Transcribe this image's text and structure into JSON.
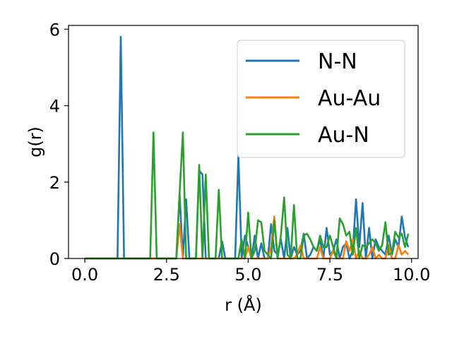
{
  "chart_data": {
    "type": "line",
    "title": "",
    "xlabel": "r (Å)",
    "ylabel": "g(r)",
    "xlim": [
      -0.5,
      10.2
    ],
    "ylim": [
      0,
      6.1
    ],
    "xticks": [
      0.0,
      2.5,
      5.0,
      7.5,
      10.0
    ],
    "xtick_labels": [
      "0.0",
      "2.5",
      "5.0",
      "7.5",
      "10.0"
    ],
    "yticks": [
      0,
      2,
      4,
      6
    ],
    "ytick_labels": [
      "0",
      "2",
      "4",
      "6"
    ],
    "grid": false,
    "legend_position": "top-right",
    "series": [
      {
        "name": "N-N",
        "color": "#1f77b4",
        "x": [
          0.0,
          0.1,
          0.2,
          0.3,
          0.4,
          0.5,
          0.6,
          0.7,
          0.8,
          0.9,
          1.0,
          1.1,
          1.2,
          1.3,
          1.4,
          1.5,
          1.6,
          1.7,
          1.8,
          1.9,
          2.0,
          2.1,
          2.2,
          2.3,
          2.4,
          2.5,
          2.6,
          2.7,
          2.8,
          2.9,
          3.0,
          3.1,
          3.2,
          3.3,
          3.4,
          3.5,
          3.6,
          3.7,
          3.8,
          3.9,
          4.0,
          4.1,
          4.2,
          4.3,
          4.4,
          4.5,
          4.6,
          4.7,
          4.8,
          4.9,
          5.0,
          5.1,
          5.2,
          5.3,
          5.4,
          5.5,
          5.6,
          5.7,
          5.8,
          5.9,
          6.0,
          6.1,
          6.2,
          6.3,
          6.4,
          6.5,
          6.6,
          6.7,
          6.8,
          6.9,
          7.0,
          7.1,
          7.2,
          7.3,
          7.4,
          7.5,
          7.6,
          7.7,
          7.8,
          7.9,
          8.0,
          8.1,
          8.2,
          8.3,
          8.4,
          8.5,
          8.6,
          8.7,
          8.8,
          8.9,
          9.0,
          9.1,
          9.2,
          9.3,
          9.4,
          9.5,
          9.6,
          9.7,
          9.8,
          9.9
        ],
        "y": [
          0,
          0,
          0,
          0,
          0,
          0,
          0,
          0,
          0,
          0,
          0,
          5.8,
          0,
          0,
          0,
          0,
          0,
          0,
          0,
          0,
          0,
          0,
          0,
          0,
          0,
          0,
          0,
          0,
          0,
          1.7,
          0,
          1.55,
          0,
          0,
          0,
          2.3,
          2.2,
          0,
          0,
          0,
          0,
          0,
          0.45,
          0,
          0,
          0,
          0,
          2.7,
          0,
          0.6,
          0.3,
          0,
          0.6,
          0,
          0.4,
          0,
          0,
          0.9,
          0.2,
          0.1,
          0.5,
          0,
          0.8,
          0,
          0.3,
          0.1,
          0.2,
          0.65,
          0,
          0.1,
          0.3,
          0.2,
          0.5,
          0,
          0.8,
          0.1,
          0.2,
          0.5,
          0,
          0.3,
          0.4,
          0,
          0.2,
          1.55,
          0.3,
          1.45,
          0,
          0.8,
          0,
          0.5,
          0.3,
          0.2,
          0.1,
          0.6,
          0.1,
          0.5,
          0.3,
          1.1,
          0.55,
          0.3
        ]
      },
      {
        "name": "Au-Au",
        "color": "#ff7f0e",
        "x": [
          0.0,
          0.1,
          0.2,
          0.3,
          0.4,
          0.5,
          0.6,
          0.7,
          0.8,
          0.9,
          1.0,
          1.1,
          1.2,
          1.3,
          1.4,
          1.5,
          1.6,
          1.7,
          1.8,
          1.9,
          2.0,
          2.1,
          2.2,
          2.3,
          2.4,
          2.5,
          2.6,
          2.7,
          2.8,
          2.9,
          3.0,
          3.1,
          3.2,
          3.3,
          3.4,
          3.5,
          3.6,
          3.7,
          3.8,
          3.9,
          4.0,
          4.1,
          4.2,
          4.3,
          4.4,
          4.5,
          4.6,
          4.7,
          4.8,
          4.9,
          5.0,
          5.1,
          5.2,
          5.3,
          5.4,
          5.5,
          5.6,
          5.7,
          5.8,
          5.9,
          6.0,
          6.1,
          6.2,
          6.3,
          6.4,
          6.5,
          6.6,
          6.7,
          6.8,
          6.9,
          7.0,
          7.1,
          7.2,
          7.3,
          7.4,
          7.5,
          7.6,
          7.7,
          7.8,
          7.9,
          8.0,
          8.1,
          8.2,
          8.3,
          8.4,
          8.5,
          8.6,
          8.7,
          8.8,
          8.9,
          9.0,
          9.1,
          9.2,
          9.3,
          9.4,
          9.5,
          9.6,
          9.7,
          9.8,
          9.9
        ],
        "y": [
          0,
          0,
          0,
          0,
          0,
          0,
          0,
          0,
          0,
          0,
          0,
          0,
          0,
          0,
          0,
          0,
          0,
          0,
          0,
          0,
          0,
          0,
          0,
          0,
          0,
          0,
          0,
          0,
          0,
          0.9,
          0,
          0,
          0,
          0,
          0,
          0,
          0,
          0,
          0,
          0,
          0,
          0,
          0,
          0,
          0,
          0,
          0,
          0,
          0,
          0,
          0.3,
          0,
          0,
          0,
          0,
          0,
          0,
          0.3,
          1.1,
          0,
          0,
          0,
          0,
          0,
          0,
          0.1,
          0.35,
          0,
          0,
          0,
          0,
          0,
          0.3,
          0,
          0,
          0,
          0.2,
          0,
          0,
          0,
          0.45,
          0.2,
          0.5,
          0,
          0.2,
          0,
          0,
          0.1,
          0.3,
          0,
          0.1,
          0,
          0,
          0.35,
          0,
          0,
          0.35,
          0.1,
          0.2,
          0.1
        ]
      },
      {
        "name": "Au-N",
        "color": "#2ca02c",
        "x": [
          0.0,
          0.1,
          0.2,
          0.3,
          0.4,
          0.5,
          0.6,
          0.7,
          0.8,
          0.9,
          1.0,
          1.1,
          1.2,
          1.3,
          1.4,
          1.5,
          1.6,
          1.7,
          1.8,
          1.9,
          2.0,
          2.1,
          2.2,
          2.3,
          2.4,
          2.5,
          2.6,
          2.7,
          2.8,
          2.9,
          3.0,
          3.1,
          3.2,
          3.3,
          3.4,
          3.5,
          3.6,
          3.7,
          3.8,
          3.9,
          4.0,
          4.1,
          4.2,
          4.3,
          4.4,
          4.5,
          4.6,
          4.7,
          4.8,
          4.9,
          5.0,
          5.1,
          5.2,
          5.3,
          5.4,
          5.5,
          5.6,
          5.7,
          5.8,
          5.9,
          6.0,
          6.1,
          6.2,
          6.3,
          6.4,
          6.5,
          6.6,
          6.7,
          6.8,
          6.9,
          7.0,
          7.1,
          7.2,
          7.3,
          7.4,
          7.5,
          7.6,
          7.7,
          7.8,
          7.9,
          8.0,
          8.1,
          8.2,
          8.3,
          8.4,
          8.5,
          8.6,
          8.7,
          8.8,
          8.9,
          9.0,
          9.1,
          9.2,
          9.3,
          9.4,
          9.5,
          9.6,
          9.7,
          9.8,
          9.9
        ],
        "y": [
          0,
          0,
          0,
          0,
          0,
          0,
          0,
          0,
          0,
          0,
          0,
          0,
          0,
          0,
          0,
          0,
          0,
          0,
          0,
          0,
          0,
          3.3,
          0,
          0,
          0,
          0,
          0,
          0,
          0,
          1.7,
          3.3,
          0,
          0,
          0,
          0,
          2.45,
          0,
          2.2,
          0,
          0,
          0,
          1.8,
          0,
          0,
          0,
          0,
          0,
          0,
          0.5,
          0,
          1.2,
          0,
          0.2,
          1.0,
          0.95,
          0.2,
          0.1,
          0,
          1.0,
          0,
          0.6,
          1.6,
          0.1,
          0,
          1.4,
          0,
          0,
          0.6,
          0.65,
          0.5,
          0.3,
          0.2,
          0.6,
          0.3,
          0.3,
          0.6,
          0.3,
          0,
          1.05,
          0.9,
          0.6,
          0.7,
          0.1,
          0.8,
          0,
          0.35,
          0.3,
          0.4,
          0.5,
          0.4,
          0.2,
          0.35,
          0.95,
          0.1,
          0.15,
          0.7,
          0.55,
          0.65,
          0.3,
          0.65
        ]
      }
    ]
  }
}
